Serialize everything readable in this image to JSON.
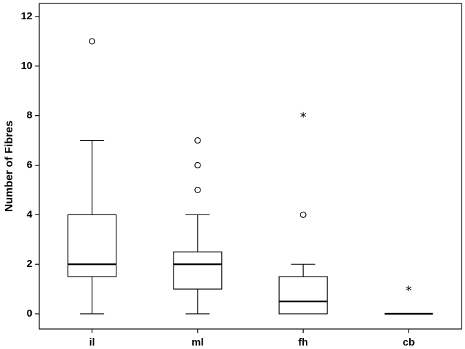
{
  "chart_data": {
    "type": "boxplot",
    "title": "",
    "xlabel": "",
    "ylabel": "Number of Fibres",
    "ylim": [
      0,
      12
    ],
    "yticks": [
      0,
      2,
      4,
      6,
      8,
      10,
      12
    ],
    "grid": false,
    "categories": [
      "il",
      "ml",
      "fh",
      "cb"
    ],
    "boxes": [
      {
        "category": "il",
        "whisker_low": 0,
        "q1": 1.5,
        "median": 2,
        "q3": 4,
        "whisker_high": 7,
        "outliers": [
          11
        ],
        "extremes": []
      },
      {
        "category": "ml",
        "whisker_low": 0,
        "q1": 1,
        "median": 2,
        "q3": 2.5,
        "whisker_high": 4,
        "outliers": [
          5,
          6,
          7
        ],
        "extremes": []
      },
      {
        "category": "fh",
        "whisker_low": 0,
        "q1": 0,
        "median": 0.5,
        "q3": 1.5,
        "whisker_high": 2,
        "outliers": [
          4
        ],
        "extremes": [
          8
        ]
      },
      {
        "category": "cb",
        "whisker_low": 0,
        "q1": 0,
        "median": 0,
        "q3": 0,
        "whisker_high": 0,
        "outliers": [],
        "extremes": [
          1
        ]
      }
    ]
  }
}
